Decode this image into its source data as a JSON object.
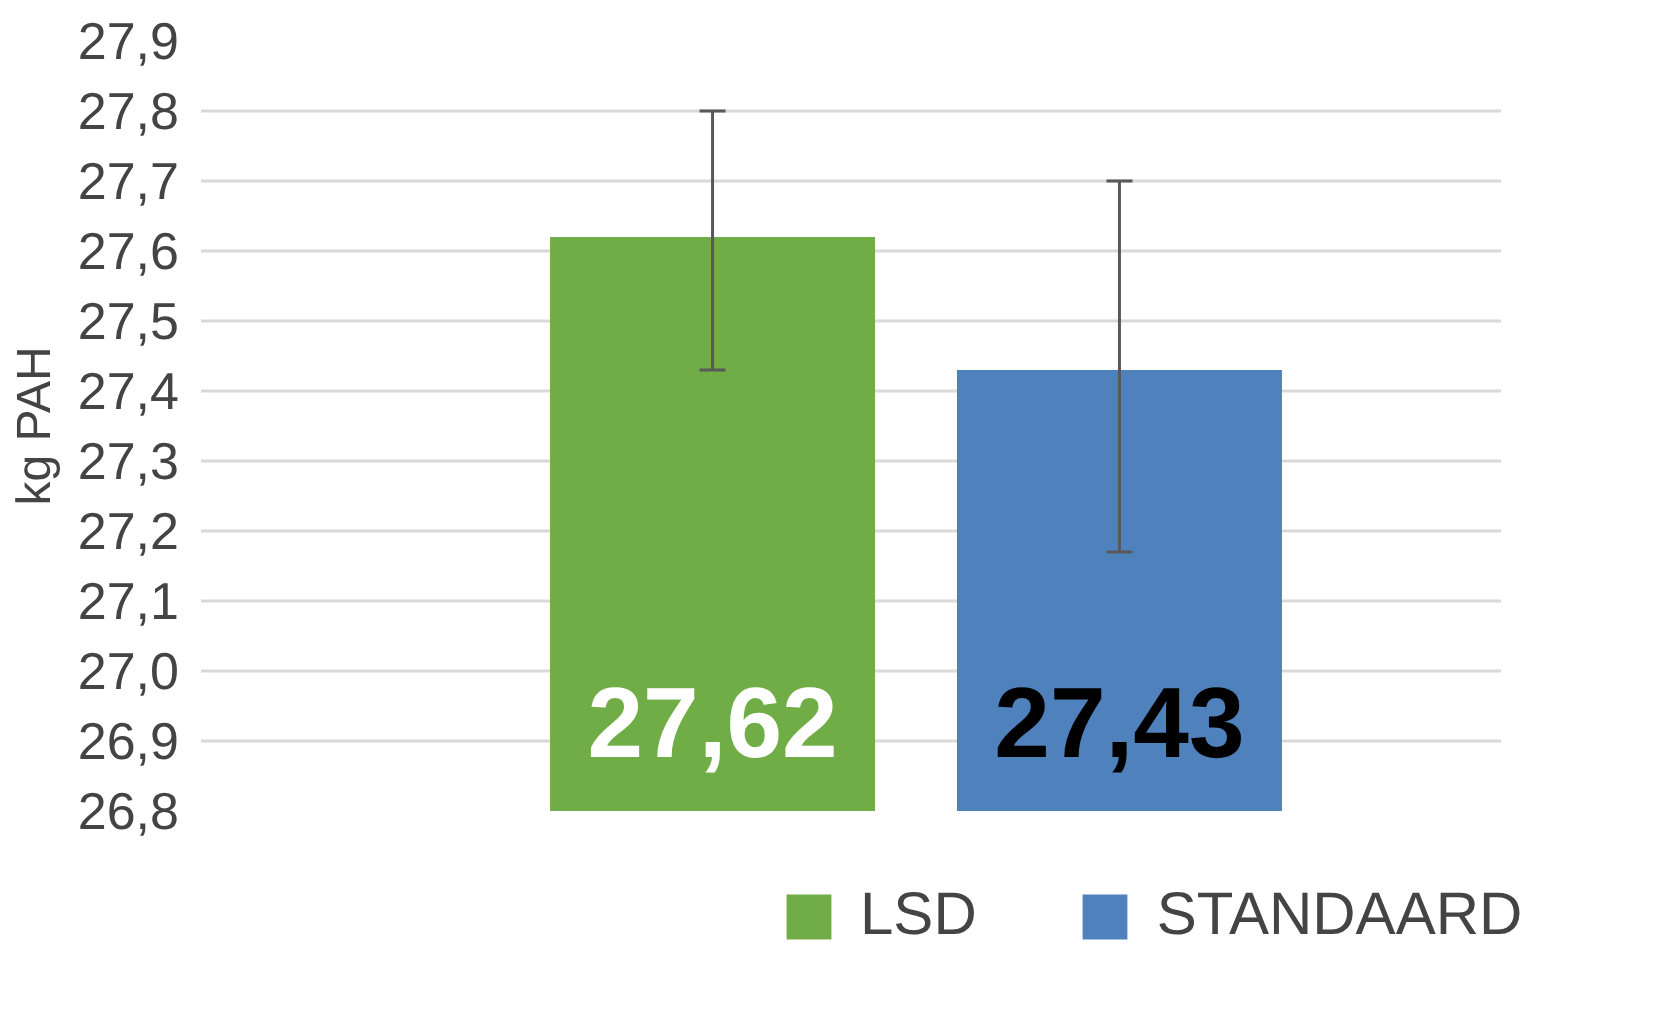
{
  "chart_data": {
    "type": "bar",
    "ylabel": "kg PAH",
    "categories": [
      null
    ],
    "series": [
      {
        "name": "LSD",
        "color": "#70ad47",
        "values": [
          27.62
        ],
        "errors": [
          [
            27.43,
            27.8
          ]
        ],
        "value_labels": [
          "27,62"
        ]
      },
      {
        "name": "STANDAARD",
        "color": "#4f81bd",
        "values": [
          27.43
        ],
        "errors": [
          [
            27.17,
            27.7
          ]
        ],
        "value_labels": [
          "27,43"
        ]
      }
    ],
    "ylim": [
      26.8,
      27.9
    ],
    "yticks": [
      {
        "value": 26.8,
        "label": "26,8"
      },
      {
        "value": 26.9,
        "label": "26,9"
      },
      {
        "value": 27.0,
        "label": "27,0"
      },
      {
        "value": 27.1,
        "label": "27,1"
      },
      {
        "value": 27.2,
        "label": "27,2"
      },
      {
        "value": 27.3,
        "label": "27,3"
      },
      {
        "value": 27.4,
        "label": "27,4"
      },
      {
        "value": 27.5,
        "label": "27,5"
      },
      {
        "value": 27.6,
        "label": "27,6"
      },
      {
        "value": 27.7,
        "label": "27,7"
      },
      {
        "value": 27.8,
        "label": "27,8"
      },
      {
        "value": 27.9,
        "label": "27,9"
      }
    ],
    "grid": "y",
    "legend": "bottom"
  }
}
